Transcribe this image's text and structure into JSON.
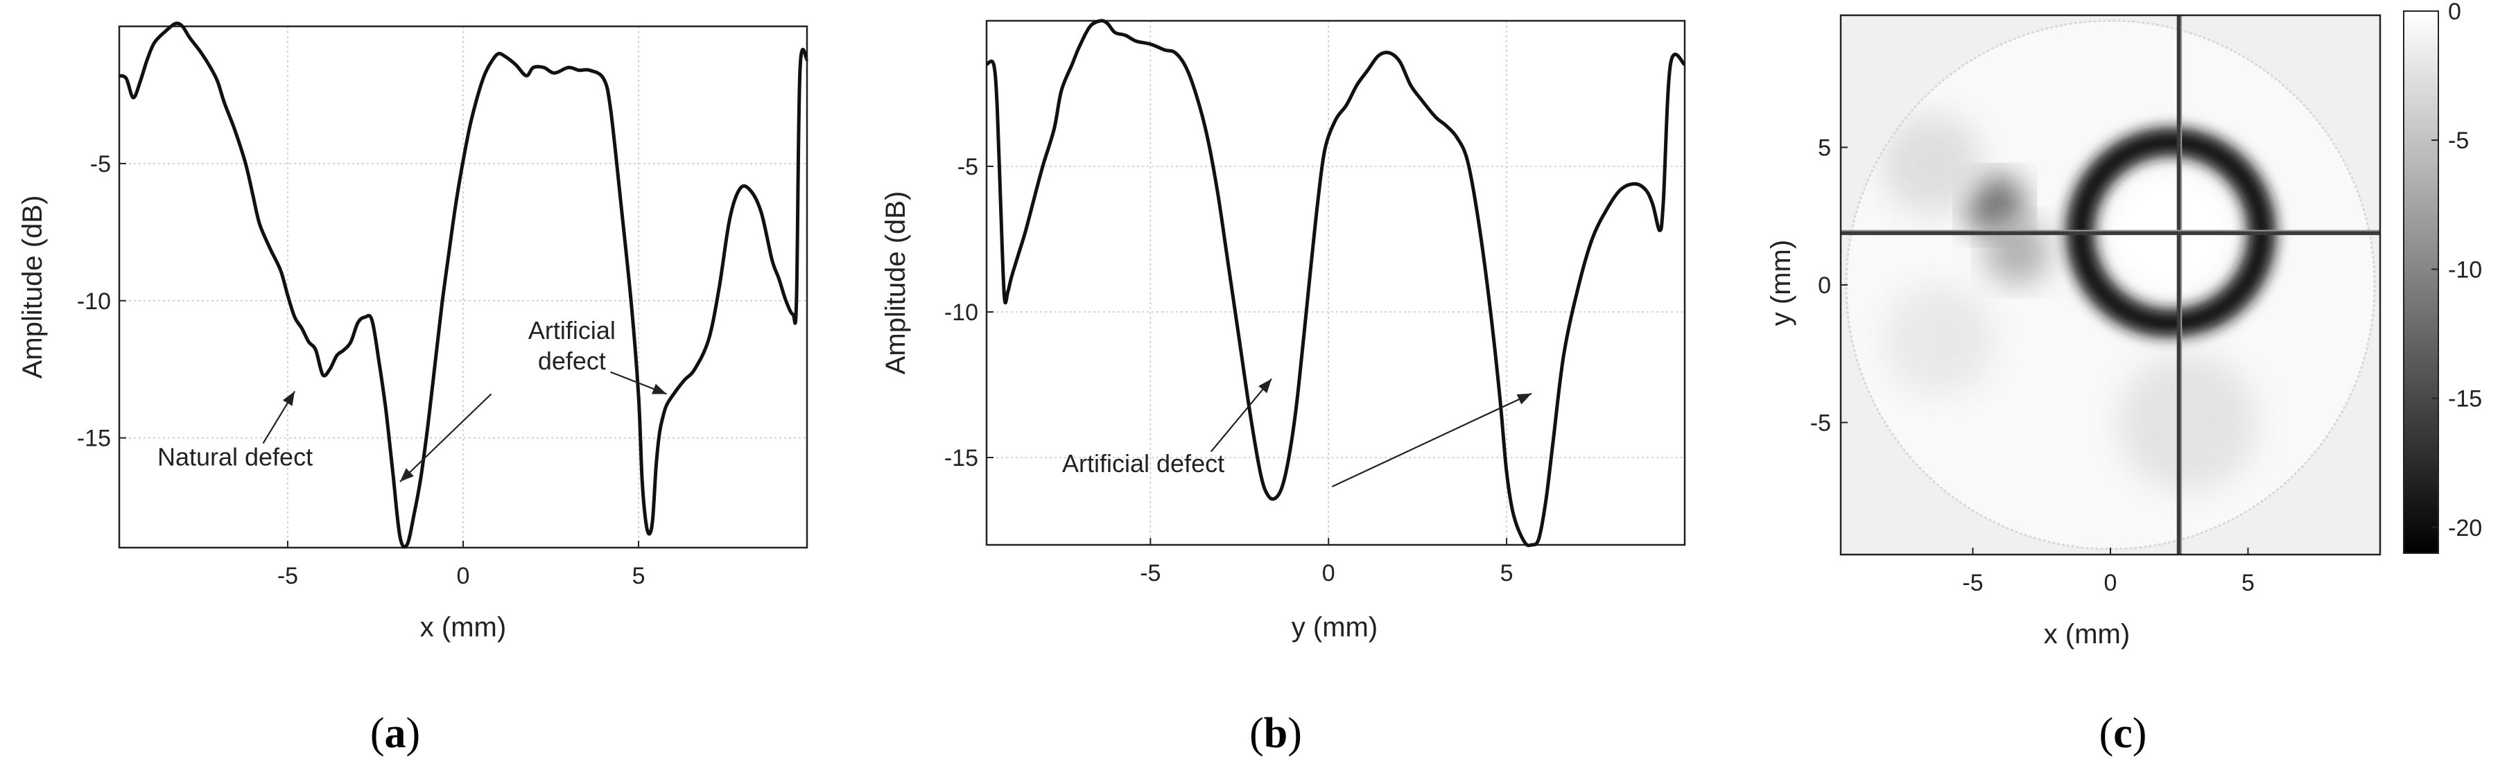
{
  "panels": [
    {
      "id": "a",
      "open": "(",
      "letter": "a",
      "close": ")"
    },
    {
      "id": "b",
      "open": "(",
      "letter": "b",
      "close": ")"
    },
    {
      "id": "c",
      "open": "(",
      "letter": "c",
      "close": ")"
    }
  ],
  "chart_data": [
    {
      "type": "line",
      "panel": "a",
      "xlabel": "x (mm)",
      "ylabel": "Amplitude (dB)",
      "xlim": [
        -9.8,
        9.8
      ],
      "ylim": [
        -19,
        0
      ],
      "xticks": [
        -5,
        0,
        5
      ],
      "yticks": [
        -5,
        -10,
        -15
      ],
      "grid": true,
      "series": [
        {
          "x": [
            -9.8,
            -9.6,
            -9.4,
            -9.2,
            -9.0,
            -8.8,
            -8.5,
            -8.2,
            -8.0,
            -7.8,
            -7.5,
            -7.2,
            -7.0,
            -6.8,
            -6.5,
            -6.2,
            -6.0,
            -5.8,
            -5.5,
            -5.2,
            -5.0,
            -4.8,
            -4.6,
            -4.4,
            -4.2,
            -4.0,
            -3.8,
            -3.6,
            -3.4,
            -3.2,
            -3.0,
            -2.8,
            -2.6,
            -2.4,
            -2.2,
            -2.0,
            -1.8,
            -1.6,
            -1.4,
            -1.2,
            -1.0,
            -0.8,
            -0.6,
            -0.4,
            -0.2,
            0.0,
            0.2,
            0.4,
            0.6,
            0.8,
            1.0,
            1.2,
            1.5,
            1.8,
            2.0,
            2.3,
            2.6,
            3.0,
            3.3,
            3.6,
            4.0,
            4.2,
            4.5,
            4.8,
            5.0,
            5.1,
            5.2,
            5.3,
            5.4,
            5.5,
            5.6,
            5.7,
            5.8,
            6.0,
            6.3,
            6.6,
            7.0,
            7.3,
            7.6,
            7.9,
            8.2,
            8.5,
            8.8,
            9.0,
            9.2,
            9.4,
            9.5,
            9.6,
            9.8
          ],
          "y": [
            -1.8,
            -1.9,
            -2.6,
            -2.0,
            -1.2,
            -0.6,
            -0.2,
            0.1,
            0.0,
            -0.4,
            -0.9,
            -1.5,
            -2.0,
            -2.8,
            -3.8,
            -5.0,
            -6.1,
            -7.2,
            -8.1,
            -8.9,
            -9.8,
            -10.6,
            -11.0,
            -11.5,
            -11.8,
            -12.7,
            -12.5,
            -12.0,
            -11.8,
            -11.5,
            -10.8,
            -10.6,
            -10.7,
            -12.2,
            -14.0,
            -16.3,
            -18.6,
            -18.9,
            -17.8,
            -16.4,
            -14.5,
            -12.3,
            -10.1,
            -8.2,
            -6.4,
            -4.9,
            -3.6,
            -2.6,
            -1.8,
            -1.3,
            -1.0,
            -1.1,
            -1.4,
            -1.8,
            -1.5,
            -1.5,
            -1.7,
            -1.5,
            -1.6,
            -1.6,
            -1.9,
            -3.0,
            -6.5,
            -10.2,
            -13.5,
            -16.5,
            -18.0,
            -18.5,
            -18.0,
            -16.0,
            -14.8,
            -14.2,
            -13.8,
            -13.4,
            -12.9,
            -12.5,
            -11.4,
            -9.5,
            -7.0,
            -5.9,
            -6.0,
            -6.8,
            -8.5,
            -9.2,
            -10.0,
            -10.5,
            -10.0,
            -1.6,
            -1.2
          ],
          "color": "#111111"
        }
      ],
      "annotations": [
        {
          "lines": [
            "Natural defect"
          ],
          "text_at": [
            -6.5,
            -16.0
          ],
          "arrow_from": [
            -5.7,
            -15.2
          ],
          "arrow_to": [
            -4.8,
            -13.3
          ]
        },
        {
          "lines": [
            "Artificial",
            "defect"
          ],
          "text_at": [
            3.1,
            -11.4
          ],
          "arrow_from": [
            0.8,
            -13.4
          ],
          "arrow_to": [
            -1.8,
            -16.6
          ]
        },
        {
          "lines": [],
          "text_at": [
            0,
            0
          ],
          "arrow_from": [
            4.2,
            -12.6
          ],
          "arrow_to": [
            5.8,
            -13.4
          ]
        }
      ]
    },
    {
      "type": "line",
      "panel": "b",
      "xlabel": "y (mm)",
      "ylabel": "Amplitude (dB)",
      "xlim": [
        -9.6,
        10.0
      ],
      "ylim": [
        -18,
        0
      ],
      "xticks": [
        -5,
        0,
        5
      ],
      "yticks": [
        -5,
        -10,
        -15
      ],
      "grid": true,
      "series": [
        {
          "x": [
            -9.6,
            -9.4,
            -9.3,
            -9.2,
            -9.1,
            -9.0,
            -8.9,
            -8.7,
            -8.5,
            -8.2,
            -8.0,
            -7.7,
            -7.5,
            -7.2,
            -7.0,
            -6.7,
            -6.4,
            -6.2,
            -6.0,
            -5.7,
            -5.4,
            -5.0,
            -4.6,
            -4.3,
            -4.0,
            -3.7,
            -3.4,
            -3.1,
            -2.8,
            -2.5,
            -2.2,
            -1.9,
            -1.7,
            -1.5,
            -1.3,
            -1.1,
            -0.9,
            -0.7,
            -0.5,
            -0.3,
            -0.1,
            0.2,
            0.5,
            0.8,
            1.1,
            1.4,
            1.7,
            2.0,
            2.3,
            2.6,
            3.0,
            3.3,
            3.6,
            3.9,
            4.2,
            4.5,
            4.8,
            5.0,
            5.2,
            5.5,
            5.7,
            5.9,
            6.1,
            6.3,
            6.6,
            7.0,
            7.4,
            7.8,
            8.2,
            8.6,
            8.9,
            9.1,
            9.3,
            9.4,
            9.6,
            10.0
          ],
          "y": [
            -1.5,
            -1.5,
            -3.0,
            -6.5,
            -9.5,
            -9.3,
            -8.8,
            -8.0,
            -7.2,
            -5.8,
            -4.9,
            -3.7,
            -2.4,
            -1.5,
            -0.9,
            -0.2,
            0.0,
            -0.1,
            -0.4,
            -0.5,
            -0.7,
            -0.8,
            -1.0,
            -1.1,
            -1.6,
            -2.6,
            -4.0,
            -6.0,
            -8.5,
            -11.0,
            -13.5,
            -15.6,
            -16.3,
            -16.4,
            -16.0,
            -14.9,
            -13.2,
            -10.9,
            -8.5,
            -6.2,
            -4.4,
            -3.4,
            -2.9,
            -2.2,
            -1.7,
            -1.2,
            -1.1,
            -1.4,
            -2.2,
            -2.7,
            -3.3,
            -3.6,
            -4.0,
            -4.8,
            -6.8,
            -9.5,
            -12.8,
            -15.5,
            -17.0,
            -17.9,
            -18.0,
            -17.8,
            -16.5,
            -14.5,
            -11.5,
            -9.2,
            -7.5,
            -6.5,
            -5.8,
            -5.6,
            -5.8,
            -6.3,
            -7.2,
            -6.2,
            -1.5,
            -1.5
          ],
          "color": "#111111"
        }
      ],
      "annotations": [
        {
          "lines": [
            "Artificial defect"
          ],
          "text_at": [
            -5.2,
            -15.5
          ],
          "arrow_from": [
            -3.3,
            -14.8
          ],
          "arrow_to": [
            -1.6,
            -12.3
          ]
        },
        {
          "lines": [],
          "text_at": [
            0,
            0
          ],
          "arrow_from": [
            0.1,
            -16.0
          ],
          "arrow_to": [
            5.7,
            -12.8
          ]
        }
      ]
    },
    {
      "type": "heatmap",
      "panel": "c",
      "xlabel": "x (mm)",
      "ylabel": "y (mm)",
      "xlim": [
        -9.8,
        9.8
      ],
      "ylim": [
        -9.8,
        9.8
      ],
      "xticks": [
        -5,
        0,
        5
      ],
      "yticks": [
        5,
        0,
        -5
      ],
      "colorbar": {
        "min": -21,
        "max": 0,
        "ticks": [
          0,
          -5,
          -10,
          -15,
          -20
        ],
        "colormap": "gray"
      },
      "disk_radius": 9.6,
      "crosshair": {
        "x": 2.5,
        "y": 1.9
      },
      "features": [
        {
          "kind": "ring",
          "center": [
            2.2,
            1.9
          ],
          "radius": 3.3,
          "width": 1.05,
          "depth_db": -19
        },
        {
          "kind": "bright_core",
          "center": [
            2.2,
            1.9
          ],
          "radius": 2.0
        },
        {
          "kind": "spot",
          "center": [
            -4.2,
            2.9
          ],
          "radius": 1.1,
          "depth_db": -13
        },
        {
          "kind": "spot",
          "center": [
            -3.4,
            1.2
          ],
          "radius": 1.2,
          "depth_db": -7
        },
        {
          "kind": "spot",
          "center": [
            -6.5,
            4.4
          ],
          "radius": 1.8,
          "depth_db": -3
        },
        {
          "kind": "spot",
          "center": [
            -6.2,
            -2.0
          ],
          "radius": 2.0,
          "depth_db": -2
        },
        {
          "kind": "spot",
          "center": [
            2.8,
            -5.0
          ],
          "radius": 2.5,
          "depth_db": -2.5
        }
      ]
    }
  ]
}
